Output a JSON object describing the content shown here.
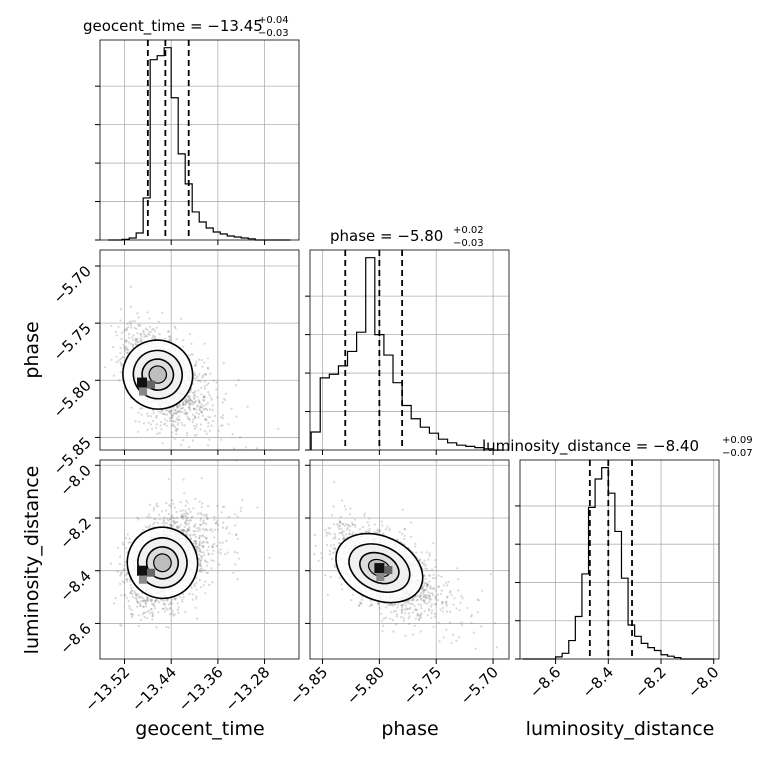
{
  "chart_data": {
    "type": "corner",
    "parameters": [
      "geocent_time",
      "phase",
      "luminosity_distance"
    ],
    "titles": [
      {
        "param": "geocent_time",
        "prefix": "geocent_time = ",
        "value": "−13.45",
        "plus": "+0.04",
        "minus": "−0.03"
      },
      {
        "param": "phase",
        "prefix": "phase = ",
        "value": "−5.80",
        "plus": "+0.02",
        "minus": "−0.03"
      },
      {
        "param": "luminosity_distance",
        "prefix": "luminosity_distance = ",
        "value": "−8.40",
        "plus": "+0.09",
        "minus": "−0.07"
      }
    ],
    "ranges": {
      "geocent_time": [
        -13.562,
        -13.221
      ],
      "phase": [
        -5.861,
        -5.686
      ],
      "luminosity_distance": [
        -8.735,
        -7.98
      ]
    },
    "ticks": {
      "geocent_time": {
        "values": [
          -13.52,
          -13.44,
          -13.36,
          -13.28
        ],
        "labels": [
          "−13.52",
          "−13.44",
          "−13.36",
          "−13.28"
        ]
      },
      "phase": {
        "values": [
          -5.85,
          -5.8,
          -5.75,
          -5.7
        ],
        "labels": [
          "−5.85",
          "−5.80",
          "−5.75",
          "−5.70"
        ]
      },
      "luminosity_distance": {
        "values": [
          -8.6,
          -8.4,
          -8.2,
          -8.0
        ],
        "labels": [
          "−8.6",
          "−8.4",
          "−8.2",
          "−8.0"
        ]
      }
    },
    "quantiles": {
      "geocent_time": [
        -13.48,
        -13.45,
        -13.41
      ],
      "phase": [
        -5.83,
        -5.8,
        -5.78
      ],
      "luminosity_distance": [
        -8.47,
        -8.4,
        -8.31
      ]
    },
    "histograms": {
      "geocent_time": {
        "edges": [
          -13.548,
          -13.536,
          -13.524,
          -13.512,
          -13.5,
          -13.488,
          -13.476,
          -13.464,
          -13.452,
          -13.44,
          -13.428,
          -13.416,
          -13.404,
          -13.392,
          -13.38,
          -13.368,
          -13.356,
          -13.344,
          -13.332,
          -13.32,
          -13.308,
          -13.296,
          -13.284,
          -13.272,
          -13.26,
          -13.248,
          -13.236
        ],
        "counts": [
          0,
          0,
          0.3,
          1.0,
          3.5,
          21,
          90,
          92,
          96,
          71,
          43,
          28,
          14,
          9,
          6,
          4,
          3,
          2,
          1.5,
          1,
          0.6,
          0,
          0,
          0,
          0,
          0
        ]
      },
      "phase": {
        "edges": [
          -5.86,
          -5.852,
          -5.844,
          -5.836,
          -5.828,
          -5.82,
          -5.812,
          -5.804,
          -5.796,
          -5.788,
          -5.78,
          -5.772,
          -5.764,
          -5.756,
          -5.748,
          -5.74,
          -5.732,
          -5.724,
          -5.716,
          -5.708,
          -5.7,
          -5.692
        ],
        "counts": [
          15,
          60,
          63,
          70,
          82,
          98,
          160,
          96,
          79,
          56,
          37,
          26,
          19,
          14,
          9,
          6,
          4,
          3,
          2,
          1,
          0
        ]
      },
      "luminosity_distance": {
        "edges": [
          -8.725,
          -8.7,
          -8.675,
          -8.65,
          -8.625,
          -8.6,
          -8.575,
          -8.55,
          -8.525,
          -8.5,
          -8.475,
          -8.45,
          -8.425,
          -8.4,
          -8.375,
          -8.35,
          -8.325,
          -8.3,
          -8.275,
          -8.25,
          -8.225,
          -8.2,
          -8.175,
          -8.15,
          -8.125,
          -8.1,
          -8.075,
          -8.05,
          -8.025,
          -8.0
        ],
        "counts": [
          0,
          0,
          0,
          0,
          0,
          1.5,
          4,
          13,
          30,
          60,
          107,
          127,
          135,
          117,
          90,
          57,
          24,
          16,
          11,
          8,
          6,
          3,
          2,
          1,
          0,
          0,
          0,
          0,
          0
        ]
      }
    },
    "scatter_2d": [
      {
        "x": "geocent_time",
        "y": "phase",
        "center": [
          -13.463,
          -5.795
        ],
        "sigma": [
          0.03,
          0.02
        ],
        "rho": -0.45,
        "peak": [
          -13.49,
          -5.802
        ]
      },
      {
        "x": "geocent_time",
        "y": "luminosity_distance",
        "center": [
          -13.455,
          -8.37
        ],
        "sigma": [
          0.03,
          0.09
        ],
        "rho": 0.3,
        "peak": [
          -13.49,
          -8.4
        ]
      },
      {
        "x": "phase",
        "y": "luminosity_distance",
        "center": [
          -5.8,
          -8.39
        ],
        "sigma": [
          0.02,
          0.08
        ],
        "rho": -0.5,
        "peak": [
          -5.8,
          -8.39
        ]
      }
    ],
    "grid": true,
    "legend": "none"
  }
}
